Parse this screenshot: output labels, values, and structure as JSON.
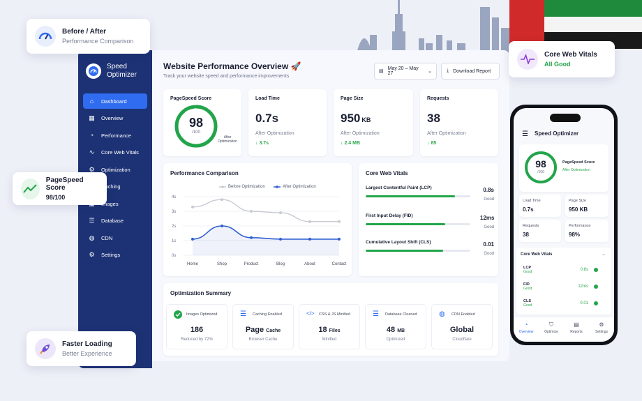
{
  "badges": {
    "before_after": {
      "title": "Before / After",
      "sub": "Performance Comparison"
    },
    "cwv": {
      "title": "Core Web Vitals",
      "sub": "All Good"
    },
    "pagespeed": {
      "title": "PageSpeed Score",
      "sub": "98/100"
    },
    "faster": {
      "title": "Faster Loading",
      "sub": "Better Experience"
    }
  },
  "sidebar": {
    "brand": "Speed Optimizer",
    "items": [
      {
        "label": "Dashboard",
        "icon": "home-icon"
      },
      {
        "label": "Overview",
        "icon": "overview-icon"
      },
      {
        "label": "Performance",
        "icon": "gauge-icon"
      },
      {
        "label": "Core Web Vitals",
        "icon": "pulse-icon"
      },
      {
        "label": "Optimization",
        "icon": "gear-icon"
      },
      {
        "label": "Caching",
        "icon": "cache-icon"
      },
      {
        "label": "Images",
        "icon": "image-icon"
      },
      {
        "label": "Database",
        "icon": "database-icon"
      },
      {
        "label": "CDN",
        "icon": "globe-icon"
      },
      {
        "label": "Settings",
        "icon": "settings-icon"
      }
    ]
  },
  "header": {
    "title": "Website Performance Overview 🚀",
    "subtitle": "Track your website speed and performance improvements",
    "date_range": "May 20 – May 27",
    "download": "Download Report"
  },
  "metrics": {
    "pagespeed": {
      "label": "PageSpeed Score",
      "value": "98",
      "outof": "/100",
      "note": "After Optimization",
      "score": 0.98
    },
    "load": {
      "label": "Load Time",
      "value": "0.7s",
      "unit": "",
      "note": "After Optimization",
      "delta": "↓ 3.7s"
    },
    "size": {
      "label": "Page Size",
      "value": "950",
      "unit": "KB",
      "note": "After Optimization",
      "delta": "↓ 2.4 MB"
    },
    "requests": {
      "label": "Requests",
      "value": "38",
      "unit": "",
      "note": "After Optimization",
      "delta": "↓ 85"
    }
  },
  "comparison": {
    "title": "Performance Comparison"
  },
  "chart_data": {
    "type": "line",
    "categories": [
      "Home",
      "Shop",
      "Product",
      "Blog",
      "About",
      "Contact"
    ],
    "series": [
      {
        "name": "Before Optimization",
        "values": [
          3.3,
          3.8,
          3.0,
          2.9,
          2.3,
          2.3
        ],
        "color": "#c9cbd3"
      },
      {
        "name": "After Optimization",
        "values": [
          1.1,
          2.0,
          1.2,
          1.1,
          1.1,
          1.1
        ],
        "color": "#2f5fd0"
      }
    ],
    "yticks": [
      "0s",
      "1s",
      "2s",
      "3s",
      "4s"
    ],
    "ylim": [
      0,
      4
    ],
    "title": "Performance Comparison"
  },
  "cwv": {
    "title": "Core Web Vitals",
    "rows": [
      {
        "label": "Largest Contentful Paint (LCP)",
        "value": "0.8s",
        "status": "Good",
        "fill": 0.85
      },
      {
        "label": "First Input Delay (FID)",
        "value": "12ms",
        "status": "Good",
        "fill": 0.76
      },
      {
        "label": "Cumulative Layout Shift (CLS)",
        "value": "0.01",
        "status": "Good",
        "fill": 0.74
      }
    ]
  },
  "summary": {
    "title": "Optimization Summary",
    "items": [
      {
        "label": "Images Optimized",
        "value": "186",
        "unit": "",
        "sub": "Reduced by 72%",
        "icon": "check-icon"
      },
      {
        "label": "Caching Enabled",
        "value": "Page",
        "unit": "Cache",
        "sub": "Browser Cache",
        "icon": "cache-icon"
      },
      {
        "label": "CSS & JS Minified",
        "value": "18",
        "unit": "Files",
        "sub": "Minified",
        "icon": "code-icon"
      },
      {
        "label": "Database Cleaned",
        "value": "48",
        "unit": "MB",
        "sub": "Optimized",
        "icon": "database-icon"
      },
      {
        "label": "CDN Enabled",
        "value": "Global",
        "unit": "",
        "sub": "Cloudflare",
        "icon": "globe-icon"
      }
    ]
  },
  "phone": {
    "title": "Speed Optimizer",
    "score": {
      "value": "98",
      "outof": "/100",
      "label": "PageSpeed Score",
      "note": "After Optimization"
    },
    "stats": [
      {
        "label": "Load Time",
        "value": "0.7s"
      },
      {
        "label": "Page Size",
        "value": "950 KB"
      },
      {
        "label": "Requests",
        "value": "38"
      },
      {
        "label": "Performance",
        "value": "98%"
      }
    ],
    "cwv_title": "Core Web Vitals",
    "cwv": [
      {
        "name": "LCP",
        "status": "Good",
        "value": "0.8s"
      },
      {
        "name": "FID",
        "status": "Good",
        "value": "12ms"
      },
      {
        "name": "CLS",
        "status": "Good",
        "value": "0.01"
      }
    ],
    "tabs": [
      "Overview",
      "Optimize",
      "Reports",
      "Settings"
    ]
  },
  "colors": {
    "primary": "#2f6cf0",
    "sidebar": "#1d3275",
    "good": "#22a54a"
  }
}
